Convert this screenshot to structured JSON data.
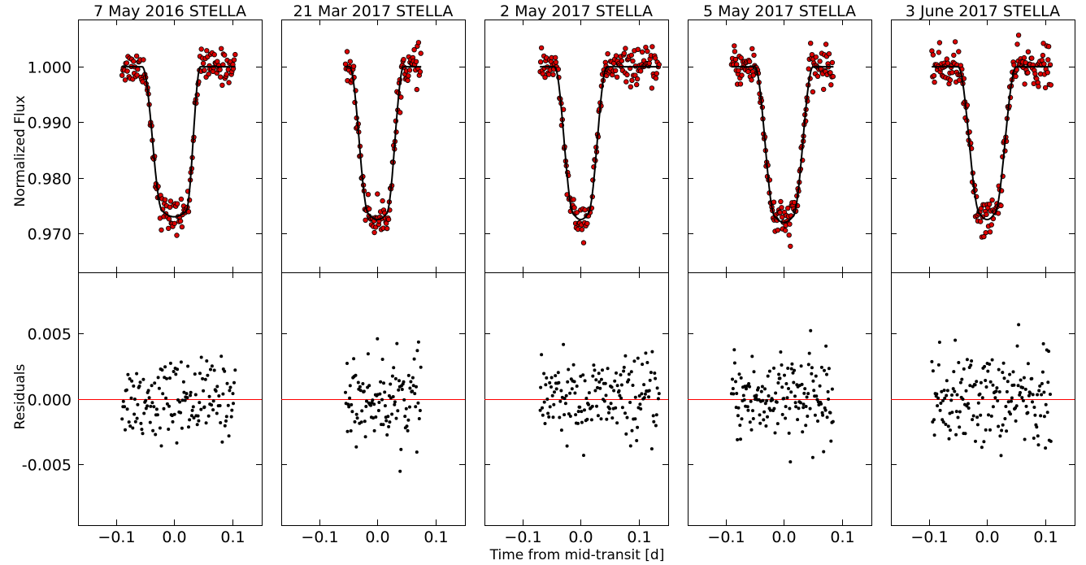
{
  "chart_data": {
    "type": "scatter",
    "xlabel": "Time from mid-transit [d]",
    "top_ylabel": "Normalized Flux",
    "bottom_ylabel": "Residuals",
    "xlim": [
      -0.165,
      0.15
    ],
    "top_ylim": [
      0.963,
      1.0085
    ],
    "bottom_ylim": [
      -0.0097,
      0.0097
    ],
    "x_ticks": [
      -0.1,
      0.0,
      0.1
    ],
    "x_tick_labels": [
      "−0.1",
      "0.0",
      "0.1"
    ],
    "top_y_ticks": [
      1.0,
      0.99,
      0.98,
      0.97
    ],
    "top_y_tick_labels": [
      "1.000",
      "0.990",
      "0.980",
      "0.970"
    ],
    "bottom_y_ticks": [
      0.005,
      0.0,
      -0.005
    ],
    "bottom_y_tick_labels": [
      "0.005",
      "0.000",
      "-0.005"
    ],
    "grid": false,
    "colors": {
      "flux_points": "#dd0000",
      "model": "#000000",
      "residual_points": "#000000",
      "zero_line": "#ff0000"
    },
    "panels": [
      {
        "title": "7 May 2016 STELLA",
        "t_start": -0.09,
        "t_end": 0.105,
        "t1": -0.055,
        "t2": -0.02,
        "t3": 0.02,
        "t4": 0.045,
        "depth": 0.026,
        "n": 150,
        "noise": 0.0015
      },
      {
        "title": "21 Mar 2017 STELLA",
        "t_start": -0.055,
        "t_end": 0.075,
        "t1": -0.048,
        "t2": -0.015,
        "t3": 0.015,
        "t4": 0.045,
        "depth": 0.0265,
        "n": 115,
        "noise": 0.0016
      },
      {
        "title": "2 May 2017 STELLA",
        "t_start": -0.07,
        "t_end": 0.135,
        "t1": -0.045,
        "t2": -0.012,
        "t3": 0.012,
        "t4": 0.045,
        "depth": 0.0265,
        "n": 165,
        "noise": 0.0015
      },
      {
        "title": "5 May 2017 STELLA",
        "t_start": -0.09,
        "t_end": 0.085,
        "t1": -0.05,
        "t2": -0.015,
        "t3": 0.015,
        "t4": 0.05,
        "depth": 0.027,
        "n": 160,
        "noise": 0.0017
      },
      {
        "title": "3 June 2017 STELLA",
        "t_start": -0.095,
        "t_end": 0.11,
        "t1": -0.05,
        "t2": -0.012,
        "t3": 0.012,
        "t4": 0.05,
        "depth": 0.0265,
        "n": 175,
        "noise": 0.0018
      }
    ]
  }
}
